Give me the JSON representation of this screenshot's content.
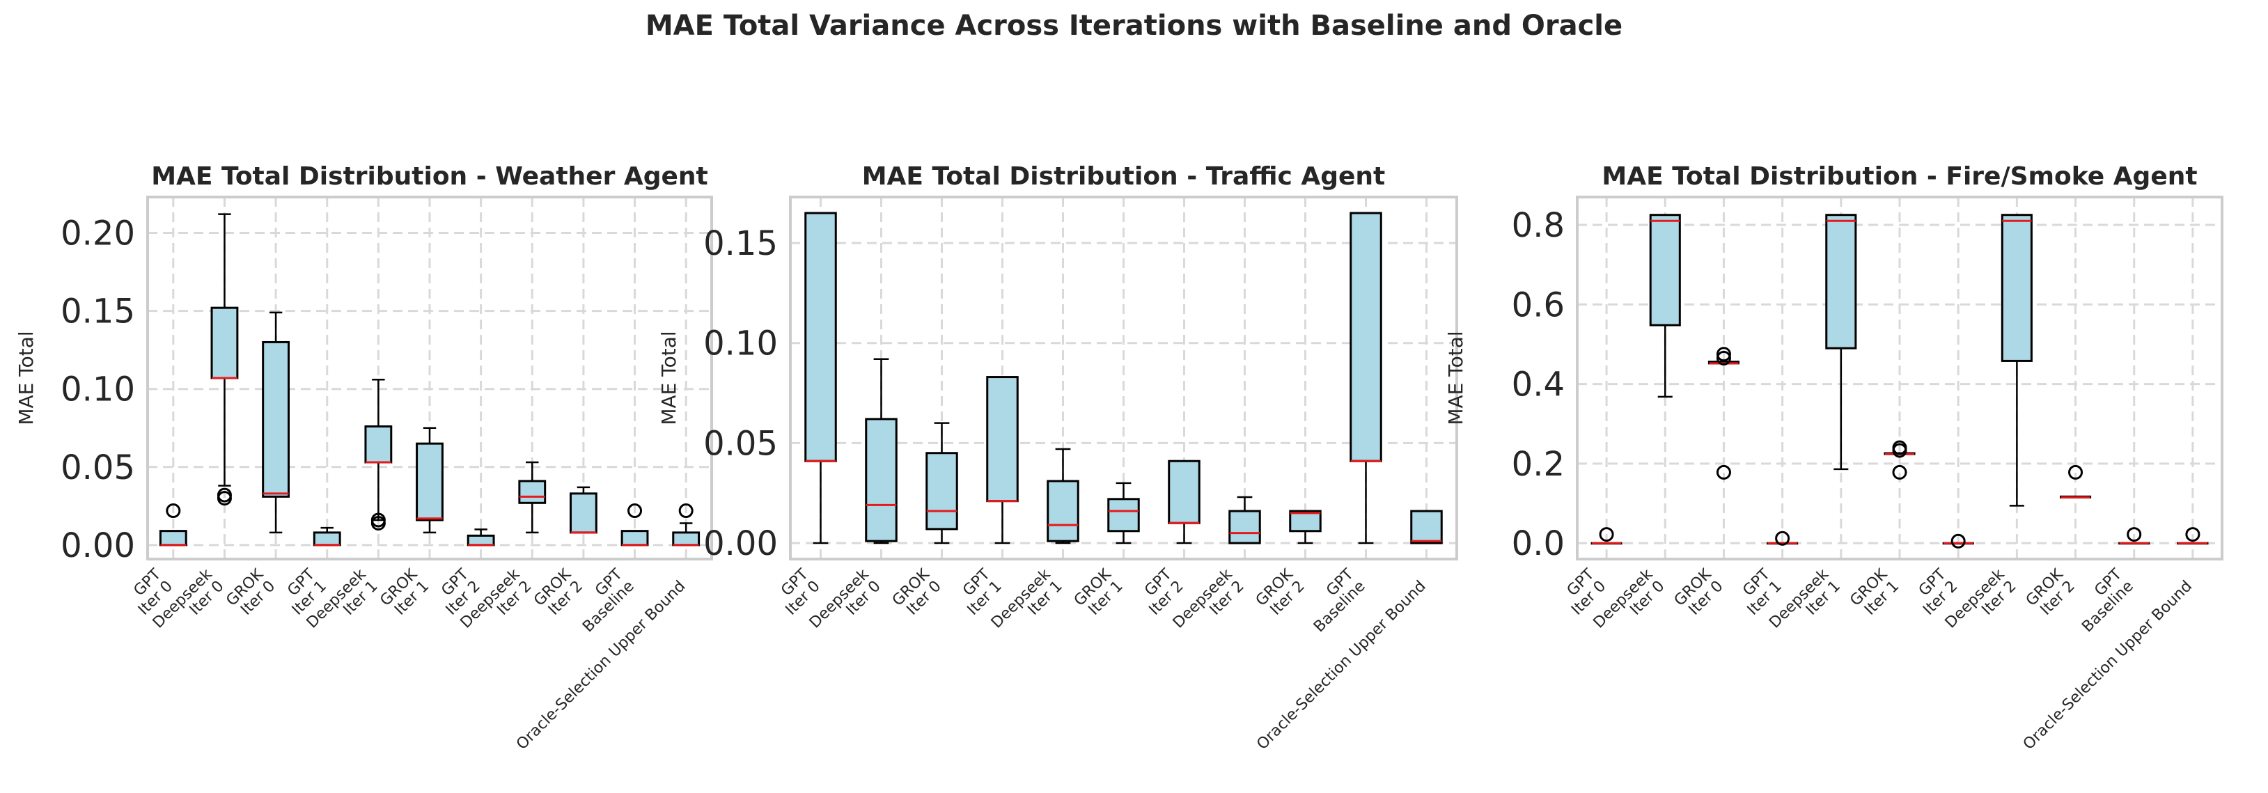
{
  "suptitle": "MAE Total Variance Across Iterations with Baseline and Oracle",
  "colors": {
    "box_fill": "#add8e6",
    "median": "#e41a1c",
    "grid": "#d9d9d9",
    "frame": "#cccccc"
  },
  "chart_data": [
    {
      "type": "box",
      "title": "MAE Total Distribution - Weather Agent",
      "ylabel": "MAE Total",
      "ylim": [
        -0.009,
        0.223
      ],
      "yticks": [
        0.0,
        0.05,
        0.1,
        0.15,
        0.2
      ],
      "ytick_labels": [
        "0.00",
        "0.05",
        "0.10",
        "0.15",
        "0.20"
      ],
      "categories": [
        [
          "GPT",
          "Iter 0"
        ],
        [
          "Deepseek",
          "Iter 0"
        ],
        [
          "GROK",
          "Iter 0"
        ],
        [
          "GPT",
          "Iter 1"
        ],
        [
          "Deepseek",
          "Iter 1"
        ],
        [
          "GROK",
          "Iter 1"
        ],
        [
          "GPT",
          "Iter 2"
        ],
        [
          "Deepseek",
          "Iter 2"
        ],
        [
          "GROK",
          "Iter 2"
        ],
        [
          "GPT",
          "Baseline"
        ],
        [
          "Oracle-Selection Upper Bound"
        ]
      ],
      "boxes": [
        {
          "whislo": 0.0,
          "q1": 0.0,
          "med": 0.0,
          "q3": 0.009,
          "whishi": 0.009,
          "fliers": [
            0.022
          ]
        },
        {
          "whislo": 0.038,
          "q1": 0.107,
          "med": 0.107,
          "q3": 0.152,
          "whishi": 0.212,
          "fliers": [
            0.032,
            0.03
          ]
        },
        {
          "whislo": 0.008,
          "q1": 0.031,
          "med": 0.033,
          "q3": 0.13,
          "whishi": 0.149,
          "fliers": []
        },
        {
          "whislo": 0.0,
          "q1": 0.0,
          "med": 0.0,
          "q3": 0.008,
          "whishi": 0.011,
          "fliers": []
        },
        {
          "whislo": 0.016,
          "q1": 0.053,
          "med": 0.053,
          "q3": 0.076,
          "whishi": 0.106,
          "fliers": [
            0.016,
            0.014
          ]
        },
        {
          "whislo": 0.008,
          "q1": 0.016,
          "med": 0.017,
          "q3": 0.065,
          "whishi": 0.075,
          "fliers": []
        },
        {
          "whislo": 0.0,
          "q1": 0.0,
          "med": 0.0,
          "q3": 0.006,
          "whishi": 0.01,
          "fliers": []
        },
        {
          "whislo": 0.008,
          "q1": 0.027,
          "med": 0.031,
          "q3": 0.041,
          "whishi": 0.053,
          "fliers": []
        },
        {
          "whislo": 0.008,
          "q1": 0.008,
          "med": 0.008,
          "q3": 0.033,
          "whishi": 0.037,
          "fliers": []
        },
        {
          "whislo": 0.0,
          "q1": 0.0,
          "med": 0.0,
          "q3": 0.009,
          "whishi": 0.009,
          "fliers": [
            0.022
          ]
        },
        {
          "whislo": 0.0,
          "q1": 0.0,
          "med": 0.0,
          "q3": 0.008,
          "whishi": 0.014,
          "fliers": [
            0.022
          ]
        }
      ]
    },
    {
      "type": "box",
      "title": "MAE Total Distribution - Traffic Agent",
      "ylabel": "MAE Total",
      "ylim": [
        -0.008,
        0.173
      ],
      "yticks": [
        0.0,
        0.05,
        0.1,
        0.15
      ],
      "ytick_labels": [
        "0.00",
        "0.05",
        "0.10",
        "0.15"
      ],
      "categories": [
        [
          "GPT",
          "Iter 0"
        ],
        [
          "Deepseek",
          "Iter 0"
        ],
        [
          "GROK",
          "Iter 0"
        ],
        [
          "GPT",
          "Iter 1"
        ],
        [
          "Deepseek",
          "Iter 1"
        ],
        [
          "GROK",
          "Iter 1"
        ],
        [
          "GPT",
          "Iter 2"
        ],
        [
          "Deepseek",
          "Iter 2"
        ],
        [
          "GROK",
          "Iter 2"
        ],
        [
          "GPT",
          "Baseline"
        ],
        [
          "Oracle-Selection Upper Bound"
        ]
      ],
      "boxes": [
        {
          "whislo": 0.0,
          "q1": 0.041,
          "med": 0.041,
          "q3": 0.165,
          "whishi": 0.165,
          "fliers": []
        },
        {
          "whislo": 0.0,
          "q1": 0.001,
          "med": 0.019,
          "q3": 0.062,
          "whishi": 0.092,
          "fliers": []
        },
        {
          "whislo": 0.0,
          "q1": 0.007,
          "med": 0.016,
          "q3": 0.045,
          "whishi": 0.06,
          "fliers": []
        },
        {
          "whislo": 0.0,
          "q1": 0.021,
          "med": 0.021,
          "q3": 0.083,
          "whishi": 0.083,
          "fliers": []
        },
        {
          "whislo": 0.0,
          "q1": 0.001,
          "med": 0.009,
          "q3": 0.031,
          "whishi": 0.047,
          "fliers": []
        },
        {
          "whislo": 0.0,
          "q1": 0.006,
          "med": 0.016,
          "q3": 0.022,
          "whishi": 0.03,
          "fliers": []
        },
        {
          "whislo": 0.0,
          "q1": 0.01,
          "med": 0.01,
          "q3": 0.041,
          "whishi": 0.041,
          "fliers": []
        },
        {
          "whislo": 0.0,
          "q1": 0.0,
          "med": 0.005,
          "q3": 0.016,
          "whishi": 0.023,
          "fliers": []
        },
        {
          "whislo": 0.0,
          "q1": 0.006,
          "med": 0.015,
          "q3": 0.016,
          "whishi": 0.016,
          "fliers": []
        },
        {
          "whislo": 0.0,
          "q1": 0.041,
          "med": 0.041,
          "q3": 0.165,
          "whishi": 0.165,
          "fliers": []
        },
        {
          "whislo": 0.0,
          "q1": 0.0,
          "med": 0.001,
          "q3": 0.016,
          "whishi": 0.016,
          "fliers": []
        }
      ]
    },
    {
      "type": "box",
      "title": "MAE Total Distribution - Fire/Smoke Agent",
      "ylabel": "MAE Total",
      "ylim": [
        -0.04,
        0.87
      ],
      "yticks": [
        0.0,
        0.2,
        0.4,
        0.6,
        0.8
      ],
      "ytick_labels": [
        "0.0",
        "0.2",
        "0.4",
        "0.6",
        "0.8"
      ],
      "categories": [
        [
          "GPT",
          "Iter 0"
        ],
        [
          "Deepseek",
          "Iter 0"
        ],
        [
          "GROK",
          "Iter 0"
        ],
        [
          "GPT",
          "Iter 1"
        ],
        [
          "Deepseek",
          "Iter 1"
        ],
        [
          "GROK",
          "Iter 1"
        ],
        [
          "GPT",
          "Iter 2"
        ],
        [
          "Deepseek",
          "Iter 2"
        ],
        [
          "GROK",
          "Iter 2"
        ],
        [
          "GPT",
          "Baseline"
        ],
        [
          "Oracle-Selection Upper Bound"
        ]
      ],
      "boxes": [
        {
          "whislo": 0.0,
          "q1": 0.0,
          "med": 0.0,
          "q3": 0.0,
          "whishi": 0.0,
          "fliers": [
            0.022
          ]
        },
        {
          "whislo": 0.368,
          "q1": 0.548,
          "med": 0.81,
          "q3": 0.825,
          "whishi": 0.825,
          "fliers": []
        },
        {
          "whislo": 0.452,
          "q1": 0.452,
          "med": 0.452,
          "q3": 0.456,
          "whishi": 0.456,
          "fliers": [
            0.475,
            0.465,
            0.178
          ]
        },
        {
          "whislo": 0.0,
          "q1": 0.0,
          "med": 0.0,
          "q3": 0.0,
          "whishi": 0.0,
          "fliers": [
            0.012
          ]
        },
        {
          "whislo": 0.186,
          "q1": 0.49,
          "med": 0.81,
          "q3": 0.825,
          "whishi": 0.825,
          "fliers": []
        },
        {
          "whislo": 0.224,
          "q1": 0.224,
          "med": 0.224,
          "q3": 0.226,
          "whishi": 0.226,
          "fliers": [
            0.24,
            0.233,
            0.178
          ]
        },
        {
          "whislo": 0.0,
          "q1": 0.0,
          "med": 0.0,
          "q3": 0.0,
          "whishi": 0.0,
          "fliers": [
            0.005
          ]
        },
        {
          "whislo": 0.094,
          "q1": 0.458,
          "med": 0.81,
          "q3": 0.825,
          "whishi": 0.825,
          "fliers": []
        },
        {
          "whislo": 0.115,
          "q1": 0.115,
          "med": 0.115,
          "q3": 0.117,
          "whishi": 0.117,
          "fliers": [
            0.178
          ]
        },
        {
          "whislo": 0.0,
          "q1": 0.0,
          "med": 0.0,
          "q3": 0.0,
          "whishi": 0.0,
          "fliers": [
            0.022
          ]
        },
        {
          "whislo": 0.0,
          "q1": 0.0,
          "med": 0.0,
          "q3": 0.0,
          "whishi": 0.0,
          "fliers": [
            0.022
          ]
        }
      ]
    }
  ]
}
